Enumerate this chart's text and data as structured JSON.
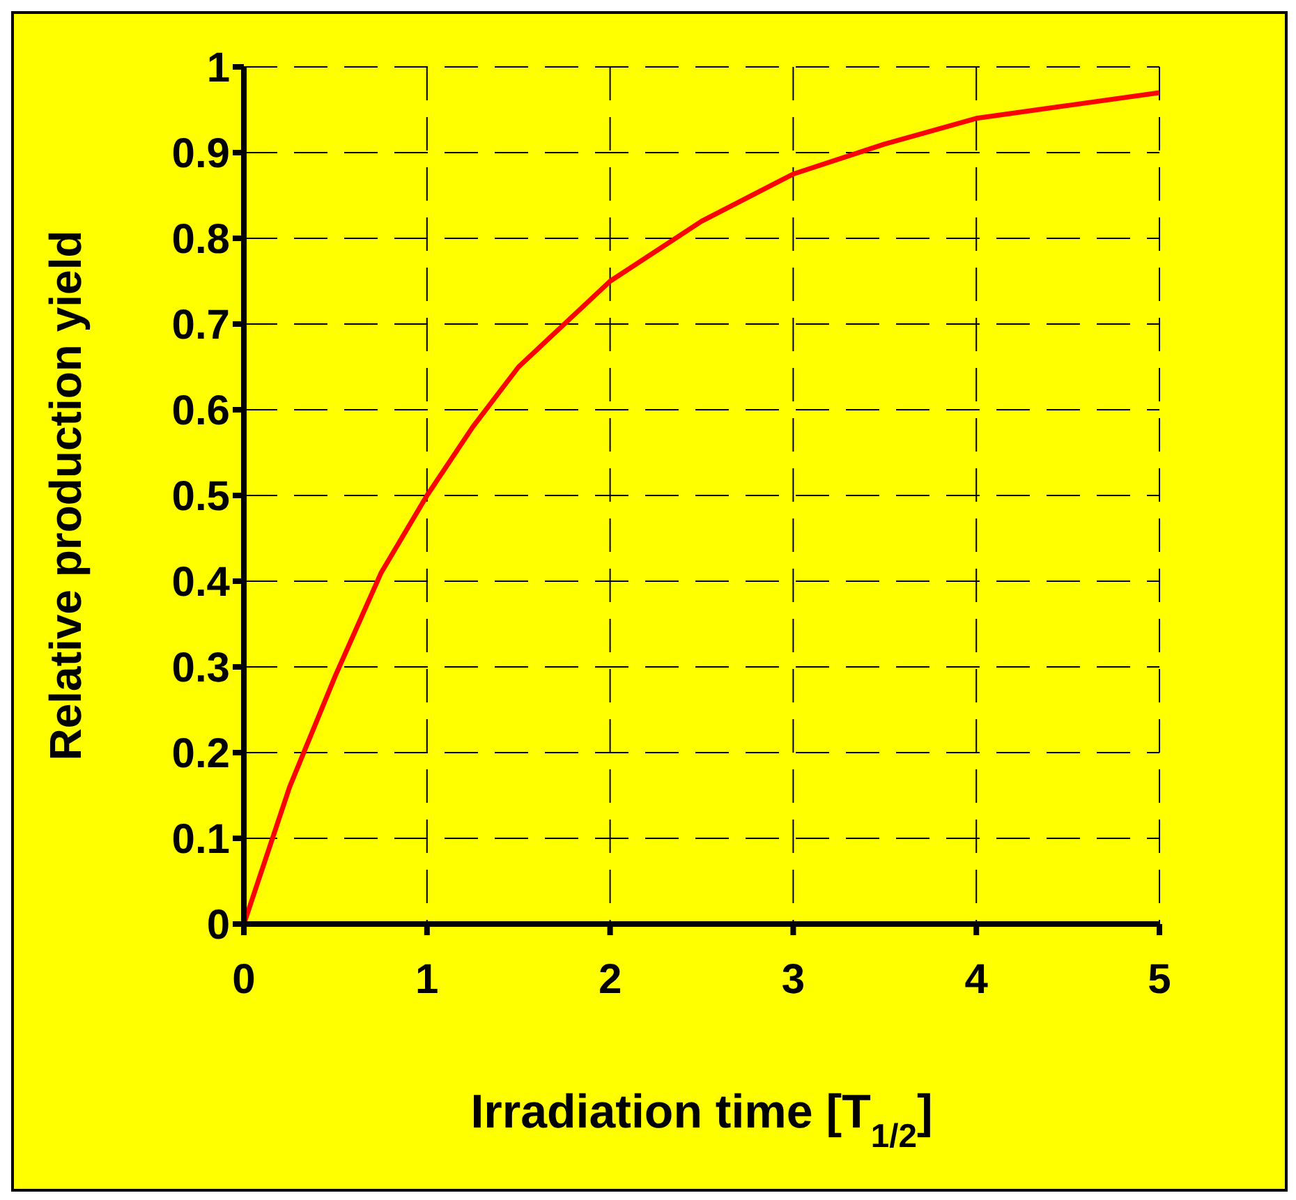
{
  "chart_data": {
    "type": "line",
    "xlabel": "Irradiation time [T$_{1/2}$]",
    "ylabel": "Relative production yield",
    "x": [
      0,
      0.25,
      0.5,
      0.75,
      1,
      1.25,
      1.5,
      1.75,
      2,
      2.5,
      3,
      3.5,
      4,
      4.5,
      5
    ],
    "series": [
      {
        "color": "#ff0000",
        "values": [
          0,
          0.16,
          0.29,
          0.41,
          0.5,
          0.58,
          0.65,
          0.7,
          0.75,
          0.82,
          0.875,
          0.91,
          0.94,
          0.955,
          0.97
        ]
      }
    ],
    "xlim": [
      0,
      5
    ],
    "xticks": [
      0,
      1,
      2,
      3,
      4,
      5
    ],
    "ylim": [
      0,
      1
    ],
    "yticks": [
      0,
      0.1,
      0.2,
      0.3,
      0.4,
      0.5,
      0.6,
      0.7,
      0.8,
      0.9,
      1
    ],
    "grid": true,
    "line_style": "solid",
    "marker": "none",
    "legend": false
  }
}
